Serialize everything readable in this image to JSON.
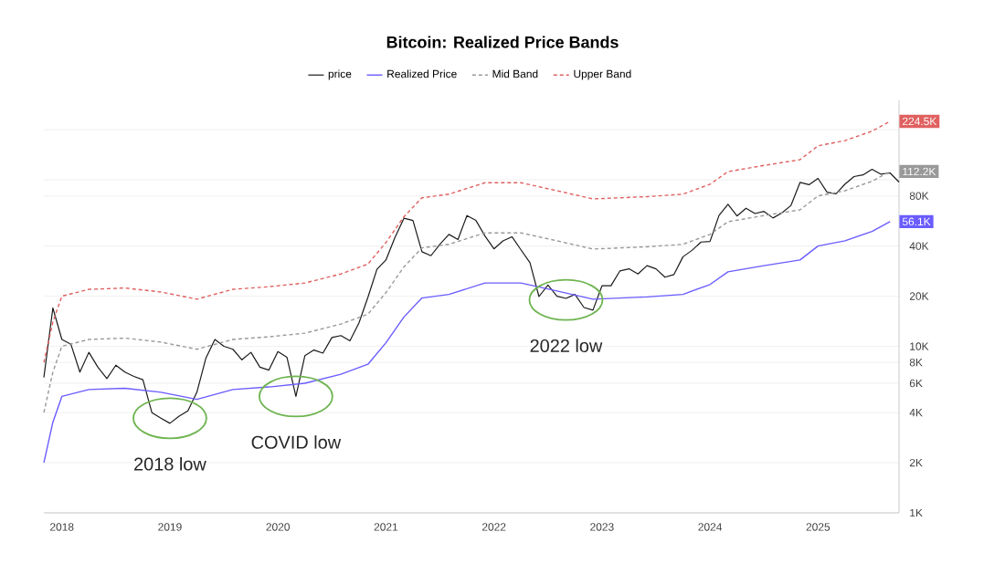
{
  "chart_data": {
    "type": "line",
    "title": "Bitcoin: Realized Price Bands",
    "log": "y",
    "grid": "y",
    "legend": "top",
    "marker": "none",
    "xlim": [
      "2017-11",
      "2025-10"
    ],
    "xticks": [
      "2018",
      "2019",
      "2020",
      "2021",
      "2022",
      "2023",
      "2024",
      "2025"
    ],
    "ylim": [
      1000,
      300000
    ],
    "yticks": [
      {
        "value": 1000,
        "label": "1K"
      },
      {
        "value": 2000,
        "label": "2K"
      },
      {
        "value": 4000,
        "label": "4K"
      },
      {
        "value": 6000,
        "label": "6K"
      },
      {
        "value": 8000,
        "label": "8K"
      },
      {
        "value": 10000,
        "label": "10K"
      },
      {
        "value": 20000,
        "label": "20K"
      },
      {
        "value": 40000,
        "label": "40K"
      },
      {
        "value": 80000,
        "label": "80K"
      },
      {
        "value": 100000,
        "label": null
      },
      {
        "value": 200000,
        "label": null
      }
    ],
    "series": [
      {
        "name": "price",
        "color": "#1a1a1a",
        "line_style": "solid",
        "x": [
          "2017-11",
          "2017-12",
          "2018-01",
          "2018-02",
          "2018-03",
          "2018-04",
          "2018-05",
          "2018-06",
          "2018-07",
          "2018-08",
          "2018-09",
          "2018-10",
          "2018-11",
          "2018-12",
          "2019-01",
          "2019-02",
          "2019-03",
          "2019-04",
          "2019-05",
          "2019-06",
          "2019-07",
          "2019-08",
          "2019-09",
          "2019-10",
          "2019-11",
          "2019-12",
          "2020-01",
          "2020-02",
          "2020-03",
          "2020-04",
          "2020-05",
          "2020-06",
          "2020-07",
          "2020-08",
          "2020-09",
          "2020-10",
          "2020-11",
          "2020-12",
          "2021-01",
          "2021-02",
          "2021-03",
          "2021-04",
          "2021-05",
          "2021-06",
          "2021-07",
          "2021-08",
          "2021-09",
          "2021-10",
          "2021-11",
          "2021-12",
          "2022-01",
          "2022-02",
          "2022-03",
          "2022-04",
          "2022-05",
          "2022-06",
          "2022-07",
          "2022-08",
          "2022-09",
          "2022-10",
          "2022-11",
          "2022-12",
          "2023-01",
          "2023-02",
          "2023-03",
          "2023-04",
          "2023-05",
          "2023-06",
          "2023-07",
          "2023-08",
          "2023-09",
          "2023-10",
          "2023-11",
          "2023-12",
          "2024-01",
          "2024-02",
          "2024-03",
          "2024-04",
          "2024-05",
          "2024-06",
          "2024-07",
          "2024-08",
          "2024-09",
          "2024-10",
          "2024-11",
          "2024-12",
          "2025-01",
          "2025-02",
          "2025-03",
          "2025-04",
          "2025-05",
          "2025-06",
          "2025-07",
          "2025-08",
          "2025-09",
          "2025-10"
        ],
        "values": [
          6500,
          17000,
          11000,
          10300,
          7000,
          9200,
          7500,
          6400,
          7700,
          7000,
          6600,
          6300,
          4000,
          3700,
          3450,
          3800,
          4100,
          5300,
          8500,
          11000,
          10000,
          9600,
          8300,
          9200,
          7500,
          7200,
          9300,
          8600,
          5000,
          8800,
          9500,
          9100,
          11300,
          11600,
          10800,
          13800,
          19700,
          29000,
          33000,
          45000,
          58800,
          57000,
          37000,
          35000,
          41000,
          47000,
          43800,
          61000,
          57000,
          46000,
          38500,
          43000,
          45500,
          38000,
          31800,
          19900,
          23300,
          20000,
          19400,
          20500,
          17100,
          16500,
          23100,
          23100,
          28400,
          29200,
          27200,
          30500,
          29200,
          26000,
          27000,
          34500,
          37700,
          42300,
          42600,
          61100,
          71300,
          60600,
          67500,
          62700,
          64600,
          59000,
          63300,
          70200,
          96400,
          93400,
          102000,
          84300,
          82500,
          94200,
          104600,
          107000,
          115700,
          108000,
          110000,
          97000
        ]
      },
      {
        "name": "Realized Price",
        "color": "#6a5cff",
        "line_style": "solid",
        "x": [
          "2017-11",
          "2017-12",
          "2018-01",
          "2018-04",
          "2018-08",
          "2018-12",
          "2019-04",
          "2019-08",
          "2019-12",
          "2020-04",
          "2020-08",
          "2020-11",
          "2021-01",
          "2021-03",
          "2021-05",
          "2021-08",
          "2021-12",
          "2022-04",
          "2022-08",
          "2022-12",
          "2023-06",
          "2023-10",
          "2024-01",
          "2024-03",
          "2024-07",
          "2024-11",
          "2025-01",
          "2025-04",
          "2025-07",
          "2025-09"
        ],
        "values": [
          2000,
          3500,
          5000,
          5500,
          5600,
          5300,
          4800,
          5500,
          5700,
          6000,
          6800,
          7800,
          10500,
          15000,
          19500,
          20500,
          24000,
          24000,
          21500,
          19200,
          19800,
          20500,
          23500,
          28000,
          30500,
          33000,
          40000,
          43000,
          49000,
          56100
        ]
      },
      {
        "name": "Mid Band",
        "color": "#999999",
        "line_style": "dashed",
        "x": [
          "2017-11",
          "2017-12",
          "2018-01",
          "2018-04",
          "2018-08",
          "2018-12",
          "2019-04",
          "2019-08",
          "2019-12",
          "2020-04",
          "2020-08",
          "2020-11",
          "2021-01",
          "2021-03",
          "2021-05",
          "2021-08",
          "2021-12",
          "2022-04",
          "2022-08",
          "2022-12",
          "2023-06",
          "2023-10",
          "2024-01",
          "2024-03",
          "2024-07",
          "2024-11",
          "2025-01",
          "2025-04",
          "2025-07",
          "2025-09"
        ],
        "values": [
          4000,
          7000,
          10000,
          11000,
          11200,
          10600,
          9600,
          11000,
          11400,
          12000,
          13600,
          15600,
          21000,
          30000,
          39000,
          41000,
          48000,
          48000,
          43000,
          38400,
          39600,
          41000,
          47000,
          56000,
          61000,
          66000,
          80000,
          86000,
          98000,
          112200
        ]
      },
      {
        "name": "Upper Band",
        "color": "#e06060",
        "line_style": "dashed",
        "x": [
          "2017-11",
          "2017-12",
          "2018-01",
          "2018-04",
          "2018-08",
          "2018-12",
          "2019-04",
          "2019-08",
          "2019-12",
          "2020-04",
          "2020-08",
          "2020-11",
          "2021-01",
          "2021-03",
          "2021-05",
          "2021-08",
          "2021-12",
          "2022-04",
          "2022-08",
          "2022-12",
          "2023-06",
          "2023-10",
          "2024-01",
          "2024-03",
          "2024-07",
          "2024-11",
          "2025-01",
          "2025-04",
          "2025-07",
          "2025-09"
        ],
        "values": [
          8000,
          14000,
          20000,
          22000,
          22400,
          21200,
          19200,
          22000,
          22800,
          24000,
          27200,
          31200,
          42000,
          60000,
          78000,
          82000,
          96000,
          96000,
          86000,
          76800,
          79200,
          82000,
          94000,
          112000,
          122000,
          132000,
          160000,
          172000,
          196000,
          224500
        ]
      }
    ],
    "annotations": [
      {
        "text": "2018 low",
        "x": "2019-01",
        "y": 3700
      },
      {
        "text": "COVID low",
        "x": "2020-03",
        "y": 5000
      },
      {
        "text": "2022 low",
        "x": "2022-09",
        "y": 19000
      },
      {
        "text": "224.5K",
        "x": "2025-09",
        "y": 224500
      },
      {
        "text": "112.2K",
        "x": "2025-09",
        "y": 112200
      },
      {
        "text": "56.1K",
        "x": "2025-09",
        "y": 56100
      }
    ]
  }
}
